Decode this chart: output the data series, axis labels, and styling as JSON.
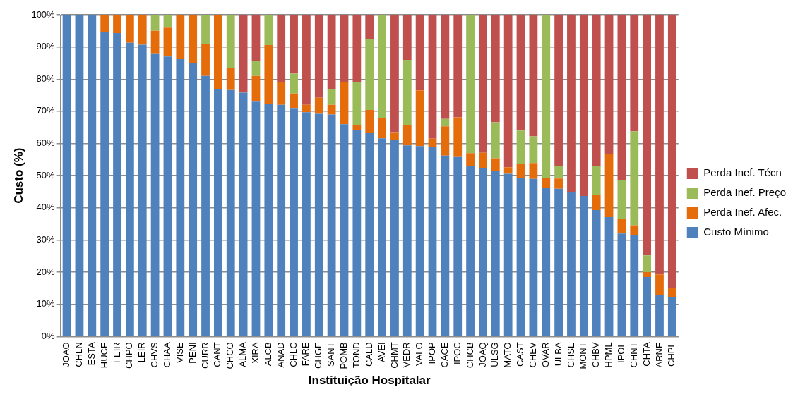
{
  "chart_data": {
    "type": "bar",
    "stacked": true,
    "xlabel": "Instituição Hospitalar",
    "ylabel": "Custo (%)",
    "categories": [
      "JOAO",
      "CHLN",
      "ESTA",
      "HUCE",
      "FEIR",
      "CHPO",
      "LEIR",
      "CHVS",
      "CHAA",
      "VISE",
      "PENI",
      "CURR",
      "CANT",
      "CHCO",
      "ALMA",
      "XIRA",
      "ALCB",
      "ANAD",
      "CHLC",
      "FARE",
      "CHGE",
      "SANT",
      "POMB",
      "TOND",
      "CALD",
      "AVEI",
      "CHMT",
      "VEDR",
      "VALO",
      "IPOP",
      "CACE",
      "IPOC",
      "CHCB",
      "JOAQ",
      "ULSG",
      "MATO",
      "CAST",
      "CHEV",
      "OVAR",
      "ULBA",
      "CHSE",
      "MONT",
      "CHBV",
      "HPML",
      "IPOL",
      "CHNT",
      "CHTA",
      "ARNE",
      "CHPL"
    ],
    "series": [
      {
        "name": "Custo Mínimo",
        "color": "#4f81bd",
        "values": [
          100,
          100,
          100,
          94.5,
          94.3,
          91.3,
          90.7,
          88,
          87,
          86.3,
          85,
          81,
          77,
          76.8,
          75.8,
          73.2,
          72.2,
          72,
          71,
          69.7,
          69.2,
          69,
          66,
          64.2,
          63.3,
          61.6,
          61,
          59.4,
          59.2,
          58.8,
          56.2,
          55.8,
          53,
          52.2,
          51.5,
          50.6,
          49.4,
          49,
          46.3,
          45.9,
          45,
          43.7,
          39.3,
          37.1,
          32,
          31.6,
          18.5,
          13,
          12.3
        ]
      },
      {
        "name": "Perda Inef. Afec.",
        "color": "#e46c0a",
        "values": [
          0,
          0,
          0,
          5.5,
          5.7,
          8.7,
          9.3,
          7,
          9,
          13.7,
          15,
          10,
          23,
          6.7,
          0,
          7.8,
          18.4,
          7,
          4.5,
          2.3,
          5,
          3,
          13.2,
          1.6,
          7.1,
          6.4,
          2.5,
          6.2,
          17.3,
          2.7,
          9.1,
          12.3,
          4,
          4.9,
          3.9,
          2,
          4.2,
          4.9,
          3.1,
          3.2,
          0,
          0,
          4.7,
          19.5,
          4.6,
          3,
          1.5,
          6.3,
          2.9
        ]
      },
      {
        "name": "Perda Inef. Preço",
        "color": "#9bbb59",
        "values": [
          0,
          0,
          0,
          0,
          0,
          0,
          0,
          5,
          4,
          0,
          0,
          9,
          0,
          16.5,
          0,
          4.7,
          9.4,
          0,
          6.2,
          0,
          0,
          5,
          0,
          13.2,
          22,
          32,
          0,
          20.4,
          0,
          0,
          2.3,
          0,
          43,
          0,
          11.2,
          0,
          10.4,
          8.3,
          50.6,
          4,
          0,
          0,
          9.1,
          0,
          12,
          29.2,
          5.2,
          0,
          0
        ]
      },
      {
        "name": "Perda Inef. Técn",
        "color": "#c0504d",
        "values": [
          0,
          0,
          0,
          0,
          0,
          0,
          0,
          0,
          0,
          0,
          0,
          0,
          0,
          0,
          24.2,
          14.3,
          0,
          21,
          18.3,
          28,
          25.8,
          23,
          20.8,
          21,
          7.6,
          0,
          36.5,
          14,
          23.5,
          38.5,
          32.4,
          31.9,
          0,
          42.9,
          33.4,
          47.4,
          36,
          37.8,
          0,
          46.9,
          55,
          56.3,
          46.9,
          43.4,
          51.4,
          36.2,
          74.8,
          80.7,
          84.8
        ]
      }
    ],
    "ylim": [
      0,
      100
    ],
    "yticks": [
      {
        "value": 0,
        "label": "0%"
      },
      {
        "value": 10,
        "label": "10%"
      },
      {
        "value": 20,
        "label": "20%"
      },
      {
        "value": 30,
        "label": "30%"
      },
      {
        "value": 40,
        "label": "40%"
      },
      {
        "value": 50,
        "label": "50%"
      },
      {
        "value": 60,
        "label": "60%"
      },
      {
        "value": 70,
        "label": "70%"
      },
      {
        "value": 80,
        "label": "80%"
      },
      {
        "value": 90,
        "label": "90%"
      },
      {
        "value": 100,
        "label": "100%"
      }
    ],
    "grid": "y",
    "legend": "right"
  }
}
